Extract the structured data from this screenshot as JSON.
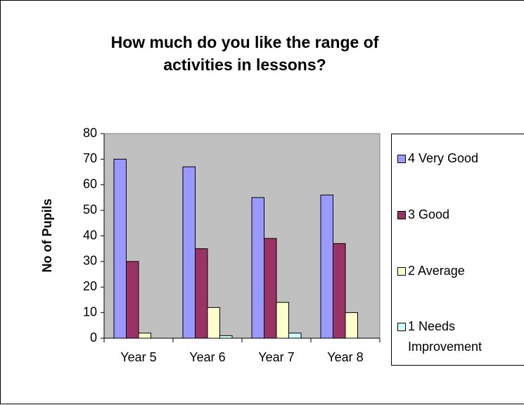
{
  "chart_data": {
    "type": "bar",
    "title": "How much do you like the range of activities in lessons?",
    "y_label": "No of Pupils",
    "categories": [
      "Year 5",
      "Year 6",
      "Year 7",
      "Year 8"
    ],
    "series": [
      {
        "name": "4 Very Good",
        "color": "#9999ff",
        "values": [
          70,
          67,
          55,
          56
        ]
      },
      {
        "name": "3 Good",
        "color": "#993366",
        "values": [
          30,
          35,
          39,
          37
        ]
      },
      {
        "name": "2 Average",
        "color": "#ffffcc",
        "values": [
          2,
          12,
          14,
          10
        ]
      },
      {
        "name": "1 Needs Improvement",
        "color": "#ccffff",
        "values": [
          0,
          1,
          2,
          0
        ]
      }
    ],
    "ylim": [
      0,
      80
    ],
    "yticks": [
      0,
      10,
      20,
      30,
      40,
      50,
      60,
      70,
      80
    ],
    "grid": false,
    "plot_background": "#c0c0c0",
    "legend": "right"
  }
}
